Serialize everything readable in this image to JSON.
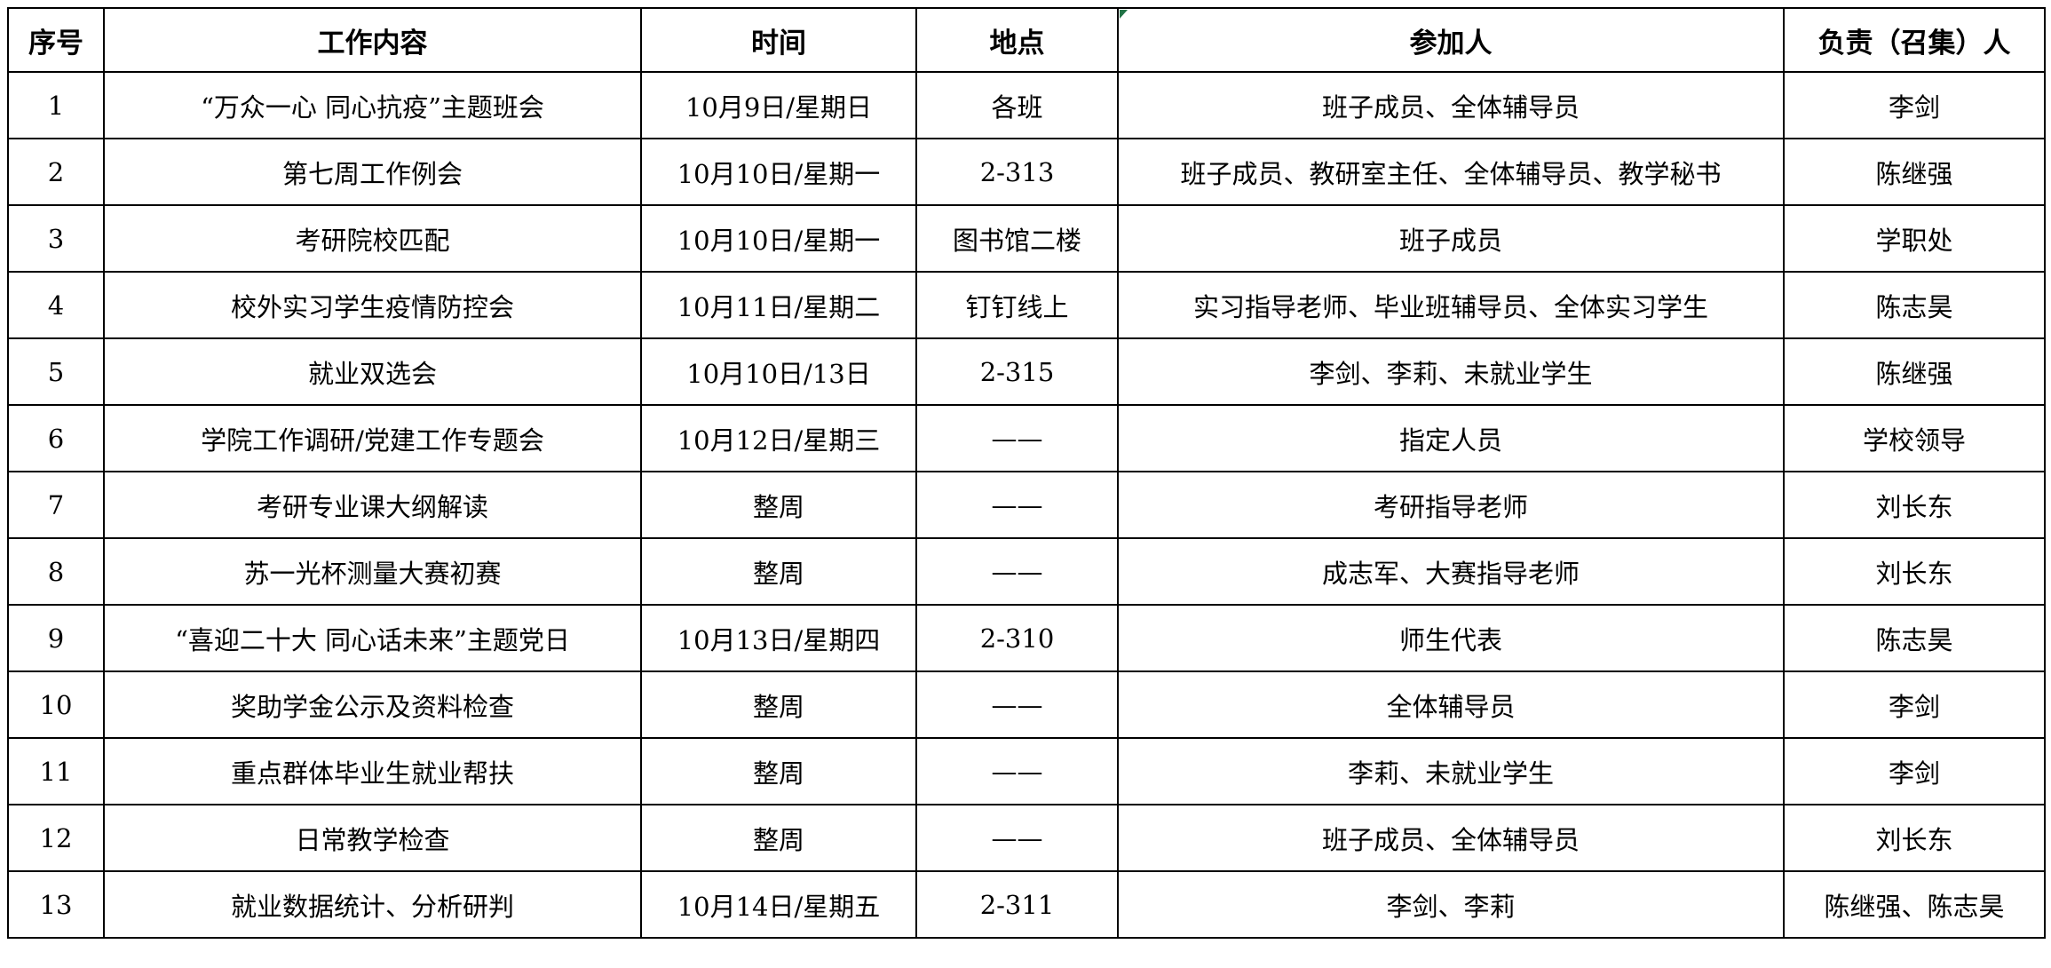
{
  "table": {
    "headers": [
      "序号",
      "工作内容",
      "时间",
      "地点",
      "参加人",
      "负责（召集）人"
    ],
    "rows": [
      [
        "1",
        "“万众一心 同心抗疫”主题班会",
        "10月9日/星期日",
        "各班",
        "班子成员、全体辅导员",
        "李剑"
      ],
      [
        "2",
        "第七周工作例会",
        "10月10日/星期一",
        "2-313",
        "班子成员、教研室主任、全体辅导员、教学秘书",
        "陈继强"
      ],
      [
        "3",
        "考研院校匹配",
        "10月10日/星期一",
        "图书馆二楼",
        "班子成员",
        "学职处"
      ],
      [
        "4",
        "校外实习学生疫情防控会",
        "10月11日/星期二",
        "钉钉线上",
        "实习指导老师、毕业班辅导员、全体实习学生",
        "陈志昊"
      ],
      [
        "5",
        "就业双选会",
        "10月10日/13日",
        "2-315",
        "李剑、李莉、未就业学生",
        "陈继强"
      ],
      [
        "6",
        "学院工作调研/党建工作专题会",
        "10月12日/星期三",
        "——",
        "指定人员",
        "学校领导"
      ],
      [
        "7",
        "考研专业课大纲解读",
        "整周",
        "——",
        "考研指导老师",
        "刘长东"
      ],
      [
        "8",
        "苏一光杯测量大赛初赛",
        "整周",
        "——",
        "成志军、大赛指导老师",
        "刘长东"
      ],
      [
        "9",
        "“喜迎二十大 同心话未来”主题党日",
        "10月13日/星期四",
        "2-310",
        "师生代表",
        "陈志昊"
      ],
      [
        "10",
        "奖助学金公示及资料检查",
        "整周",
        "——",
        "全体辅导员",
        "李剑"
      ],
      [
        "11",
        "重点群体毕业生就业帮扶",
        "整周",
        "——",
        "李莉、未就业学生",
        "李剑"
      ],
      [
        "12",
        "日常教学检查",
        "整周",
        "——",
        "班子成员、全体辅导员",
        "刘长东"
      ],
      [
        "13",
        "就业数据统计、分析研判",
        "10月14日/星期五",
        "2-311",
        "李剑、李莉",
        "陈继强、陈志昊"
      ]
    ]
  },
  "colors": {
    "border": "#000000",
    "background": "#ffffff",
    "text": "#000000",
    "error_indicator": "#217346"
  },
  "icons": {
    "error_indicator": "excel-cell-error-triangle"
  }
}
